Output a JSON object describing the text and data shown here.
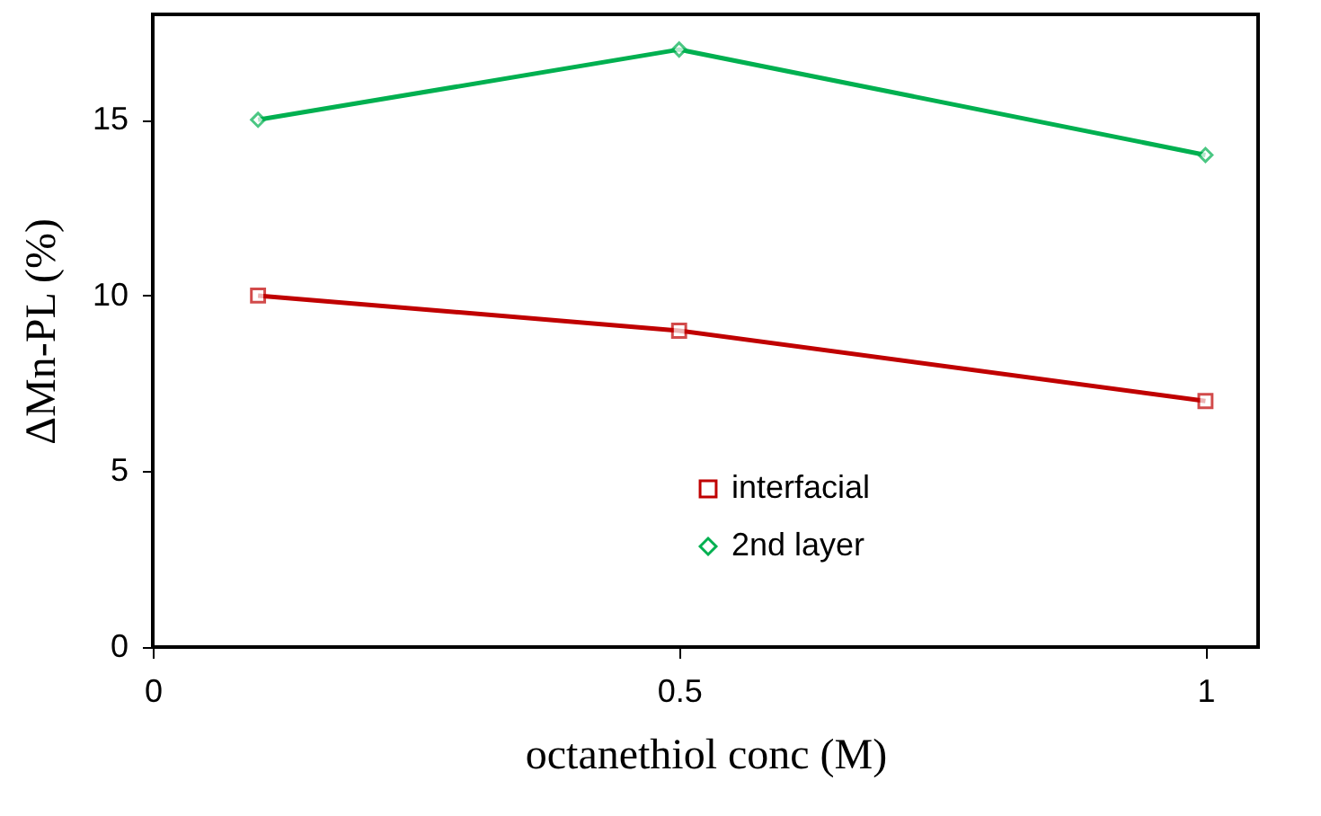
{
  "chart_data": {
    "type": "line",
    "xlabel": "octanethiol conc (M)",
    "ylabel": "ΔMn-PL (%)",
    "x": [
      0.1,
      0.5,
      1
    ],
    "series": [
      {
        "name": "interfacial",
        "color": "#c00000",
        "marker": "square",
        "values": [
          10,
          9,
          7
        ]
      },
      {
        "name": "2nd layer",
        "color": "#00b050",
        "marker": "diamond",
        "values": [
          15,
          17,
          14
        ]
      }
    ],
    "xlim": [
      0,
      1.05
    ],
    "xticks": [
      0,
      0.5,
      1
    ],
    "ylim": [
      0,
      18
    ],
    "yticks": [
      0,
      5,
      10,
      15
    ],
    "legend": "bottom right"
  }
}
